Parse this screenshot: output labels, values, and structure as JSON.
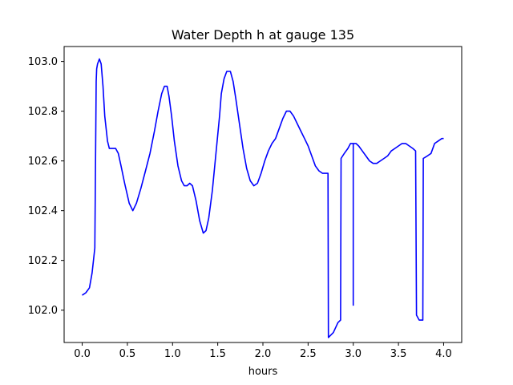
{
  "chart_data": {
    "type": "line",
    "title": "Water Depth h at gauge 135",
    "xlabel": "hours",
    "ylabel": "",
    "xlim": [
      -0.2,
      4.2
    ],
    "ylim": [
      101.87,
      103.06
    ],
    "xticks": [
      0.0,
      0.5,
      1.0,
      1.5,
      2.0,
      2.5,
      3.0,
      3.5,
      4.0
    ],
    "xtick_labels": [
      "0.0",
      "0.5",
      "1.0",
      "1.5",
      "2.0",
      "2.5",
      "3.0",
      "3.5",
      "4.0"
    ],
    "yticks": [
      102.0,
      102.2,
      102.4,
      102.6,
      102.8,
      103.0
    ],
    "ytick_labels": [
      "102.0",
      "102.2",
      "102.4",
      "102.6",
      "102.8",
      "103.0"
    ],
    "grid": false,
    "series": [
      {
        "color": "#0000ff",
        "x": [
          0.0,
          0.04,
          0.08,
          0.11,
          0.14,
          0.155,
          0.16,
          0.17,
          0.19,
          0.21,
          0.23,
          0.25,
          0.28,
          0.3,
          0.33,
          0.37,
          0.4,
          0.43,
          0.47,
          0.52,
          0.56,
          0.6,
          0.65,
          0.7,
          0.75,
          0.8,
          0.84,
          0.88,
          0.91,
          0.94,
          0.96,
          0.99,
          1.02,
          1.06,
          1.1,
          1.13,
          1.16,
          1.19,
          1.22,
          1.26,
          1.3,
          1.34,
          1.37,
          1.4,
          1.44,
          1.48,
          1.52,
          1.54,
          1.57,
          1.6,
          1.64,
          1.67,
          1.7,
          1.74,
          1.78,
          1.82,
          1.86,
          1.9,
          1.94,
          1.98,
          2.02,
          2.06,
          2.1,
          2.14,
          2.18,
          2.22,
          2.26,
          2.3,
          2.34,
          2.38,
          2.42,
          2.46,
          2.5,
          2.54,
          2.58,
          2.62,
          2.66,
          2.7,
          2.72,
          2.725,
          2.78,
          2.83,
          2.86,
          2.865,
          2.9,
          2.94,
          2.97,
          3.0,
          3.0,
          3.0,
          3.03,
          3.06,
          3.1,
          3.14,
          3.18,
          3.22,
          3.26,
          3.3,
          3.34,
          3.38,
          3.42,
          3.46,
          3.5,
          3.54,
          3.58,
          3.62,
          3.66,
          3.69,
          3.7,
          3.73,
          3.77,
          3.775,
          3.82,
          3.86,
          3.9,
          3.94,
          3.98,
          4.0
        ],
        "y": [
          102.06,
          102.07,
          102.09,
          102.15,
          102.25,
          102.92,
          102.97,
          102.99,
          103.01,
          102.99,
          102.9,
          102.78,
          102.68,
          102.65,
          102.65,
          102.65,
          102.63,
          102.58,
          102.51,
          102.43,
          102.4,
          102.43,
          102.49,
          102.56,
          102.63,
          102.72,
          102.8,
          102.87,
          102.9,
          102.9,
          102.86,
          102.78,
          102.68,
          102.58,
          102.52,
          102.5,
          102.5,
          102.51,
          102.5,
          102.44,
          102.36,
          102.31,
          102.32,
          102.37,
          102.48,
          102.63,
          102.78,
          102.87,
          102.93,
          102.96,
          102.96,
          102.92,
          102.85,
          102.75,
          102.65,
          102.57,
          102.52,
          102.5,
          102.51,
          102.55,
          102.6,
          102.64,
          102.67,
          102.69,
          102.73,
          102.77,
          102.8,
          102.8,
          102.78,
          102.75,
          102.72,
          102.69,
          102.66,
          102.62,
          102.58,
          102.56,
          102.55,
          102.55,
          102.55,
          101.89,
          101.91,
          101.95,
          101.96,
          102.61,
          102.63,
          102.65,
          102.67,
          102.67,
          102.02,
          102.67,
          102.67,
          102.66,
          102.64,
          102.62,
          102.6,
          102.59,
          102.59,
          102.6,
          102.61,
          102.62,
          102.64,
          102.65,
          102.66,
          102.67,
          102.67,
          102.66,
          102.65,
          102.64,
          101.98,
          101.96,
          101.96,
          102.61,
          102.62,
          102.63,
          102.67,
          102.68,
          102.69,
          102.69
        ]
      }
    ]
  }
}
